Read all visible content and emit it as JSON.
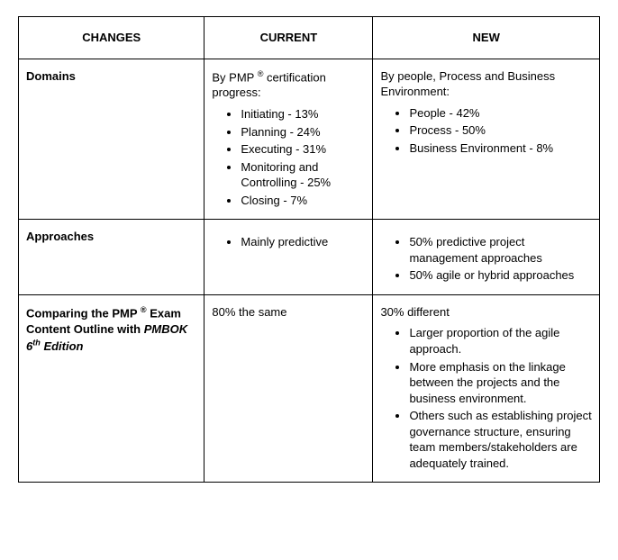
{
  "table": {
    "columns": [
      "CHANGES",
      "CURRENT",
      "NEW"
    ],
    "col_widths_pct": [
      32,
      29,
      39
    ],
    "header_bg": "#ffffff",
    "border_color": "#000000",
    "font_family": "Arial",
    "font_size_pt": 10,
    "rows": [
      {
        "label_html": "Domains",
        "current": {
          "intro_html": "By PMP <span class='sup'>®</span>  certification progress:",
          "bullets": [
            "Initiating - 13%",
            "Planning - 24%",
            "Executing - 31%",
            "Monitoring and Controlling - 25%",
            "Closing - 7%"
          ]
        },
        "new": {
          "intro_html": "By people, Process and Business Environment:",
          "bullets": [
            "People - 42%",
            "Process - 50%",
            "Business Environment - 8%"
          ]
        }
      },
      {
        "label_html": "Approaches",
        "current": {
          "intro_html": "",
          "bullets": [
            "Mainly predictive"
          ]
        },
        "new": {
          "intro_html": "",
          "bullets": [
            "50% predictive project management approaches",
            "50% agile or hybrid approaches"
          ]
        }
      },
      {
        "label_html": "Comparing the PMP <span class='sup'>®</span>  Exam Content Outline with <span class='ital'>PMBOK 6<span class='sup'>th</span> Edition</span>",
        "current": {
          "intro_html": "80% the same",
          "bullets": []
        },
        "new": {
          "intro_html": "30% different",
          "bullets": [
            "Larger proportion of the agile approach.",
            "More emphasis on the linkage between the projects and the business environment.",
            "Others such as establishing project governance structure, ensuring team members/stakeholders are adequately trained."
          ]
        }
      }
    ]
  }
}
